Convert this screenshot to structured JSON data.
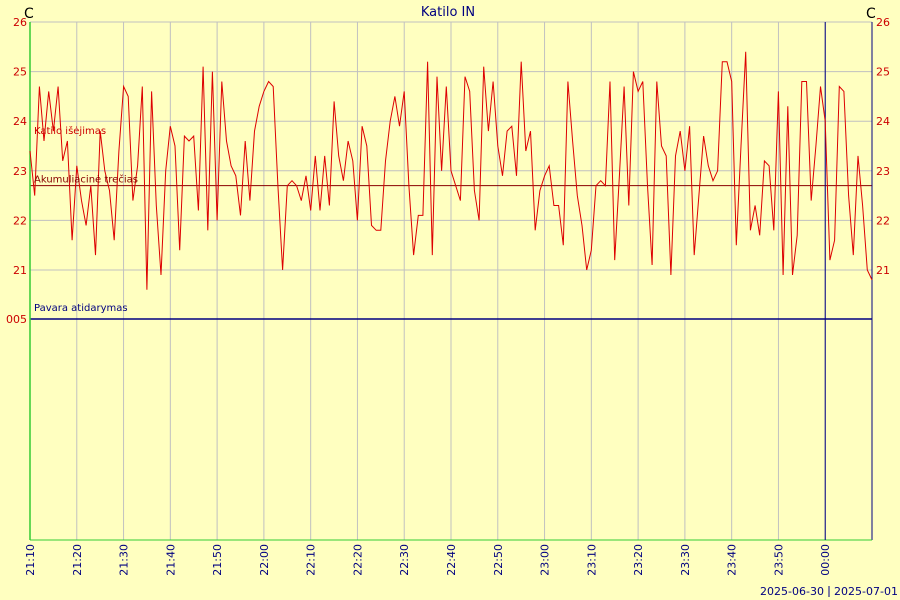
{
  "chart_data": {
    "type": "line",
    "title": "Katilo IN",
    "unit_left": "C",
    "unit_right": "C",
    "ylim": [
      19,
      26
    ],
    "y_ticks": [
      21,
      22,
      23,
      24,
      25,
      26
    ],
    "y_extra_tick": "005",
    "y_extra_value": 20,
    "x_ticks": [
      "21:10",
      "21:20",
      "21:30",
      "21:40",
      "21:50",
      "22:00",
      "22:10",
      "22:20",
      "22:30",
      "22:40",
      "22:50",
      "23:00",
      "23:10",
      "23:20",
      "23:30",
      "23:40",
      "23:50",
      "00:00"
    ],
    "x_start": "21:10",
    "x_end": "00:10",
    "date_labels": [
      "2025-06-30",
      "2025-07-01"
    ],
    "day_boundary": "00:00",
    "grid": true,
    "colors": {
      "background": "#ffffc0",
      "grid": "#c0c0c0",
      "series": "#dd0000",
      "axis_left": "#33cc33",
      "axis_right": "#000080",
      "reference_red": "#880000",
      "reference_blue": "#000080"
    },
    "series": [
      {
        "name": "Katilo išėjimas",
        "values": [
          23.4,
          22.5,
          24.7,
          23.6,
          24.6,
          23.8,
          24.7,
          23.2,
          23.6,
          21.6,
          23.1,
          22.4,
          21.9,
          22.7,
          21.3,
          23.8,
          23.0,
          22.6,
          21.6,
          23.4,
          24.7,
          24.5,
          22.4,
          23.1,
          24.7,
          20.6,
          24.6,
          22.3,
          20.9,
          23.0,
          23.9,
          23.5,
          21.4,
          23.7,
          23.6,
          23.7,
          22.2,
          25.1,
          21.8,
          25.0,
          22.0,
          24.8,
          23.6,
          23.1,
          22.9,
          22.1,
          23.6,
          22.4,
          23.8,
          24.3,
          24.6,
          24.8,
          24.7,
          22.7,
          21.0,
          22.7,
          22.8,
          22.7,
          22.4,
          22.9,
          22.2,
          23.3,
          22.2,
          23.3,
          22.3,
          24.4,
          23.3,
          22.8,
          23.6,
          23.2,
          22.0,
          23.9,
          23.5,
          21.9,
          21.8,
          21.8,
          23.2,
          24.0,
          24.5,
          23.9,
          24.6,
          22.7,
          21.3,
          22.1,
          22.1,
          25.2,
          21.3,
          24.9,
          23.0,
          24.7,
          23.0,
          22.7,
          22.4,
          24.9,
          24.6,
          22.6,
          22.0,
          25.1,
          23.8,
          24.8,
          23.5,
          22.9,
          23.8,
          23.9,
          22.9,
          25.2,
          23.4,
          23.8,
          21.8,
          22.6,
          22.9,
          23.1,
          22.3,
          22.3,
          21.5,
          24.8,
          23.6,
          22.5,
          21.9,
          21.0,
          21.4,
          22.7,
          22.8,
          22.7,
          24.8,
          21.2,
          22.9,
          24.7,
          22.3,
          25.0,
          24.6,
          24.8,
          22.7,
          21.1,
          24.8,
          23.5,
          23.3,
          20.9,
          23.3,
          23.8,
          23.0,
          23.9,
          21.3,
          22.5,
          23.7,
          23.1,
          22.8,
          23.0,
          25.2,
          25.2,
          24.8,
          21.5,
          23.5,
          25.4,
          21.8,
          22.3,
          21.7,
          23.2,
          23.1,
          21.8,
          24.6,
          20.9,
          24.3,
          20.9,
          21.7,
          24.8,
          24.8,
          22.4,
          23.5,
          24.7,
          24.0,
          21.2,
          21.6,
          24.7,
          24.6,
          22.5,
          21.3,
          23.3,
          22.3,
          21.0,
          20.8
        ]
      }
    ],
    "reference_lines": [
      {
        "name": "Akumuliacinė trečias",
        "value": 22.7
      },
      {
        "name": "Pavara atidarymas",
        "value": 20
      }
    ]
  }
}
